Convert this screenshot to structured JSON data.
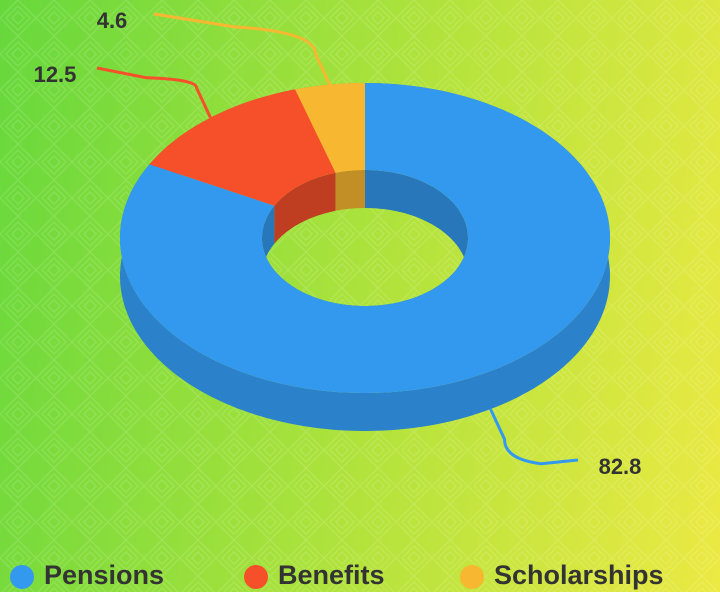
{
  "chart_data": {
    "type": "donut",
    "categories": [
      "Pensions",
      "Benefits",
      "Scholarships"
    ],
    "values": [
      82.8,
      12.5,
      4.6
    ],
    "colors": [
      "#3399ee",
      "#f5502a",
      "#f7b731"
    ],
    "legend": "bottom"
  }
}
